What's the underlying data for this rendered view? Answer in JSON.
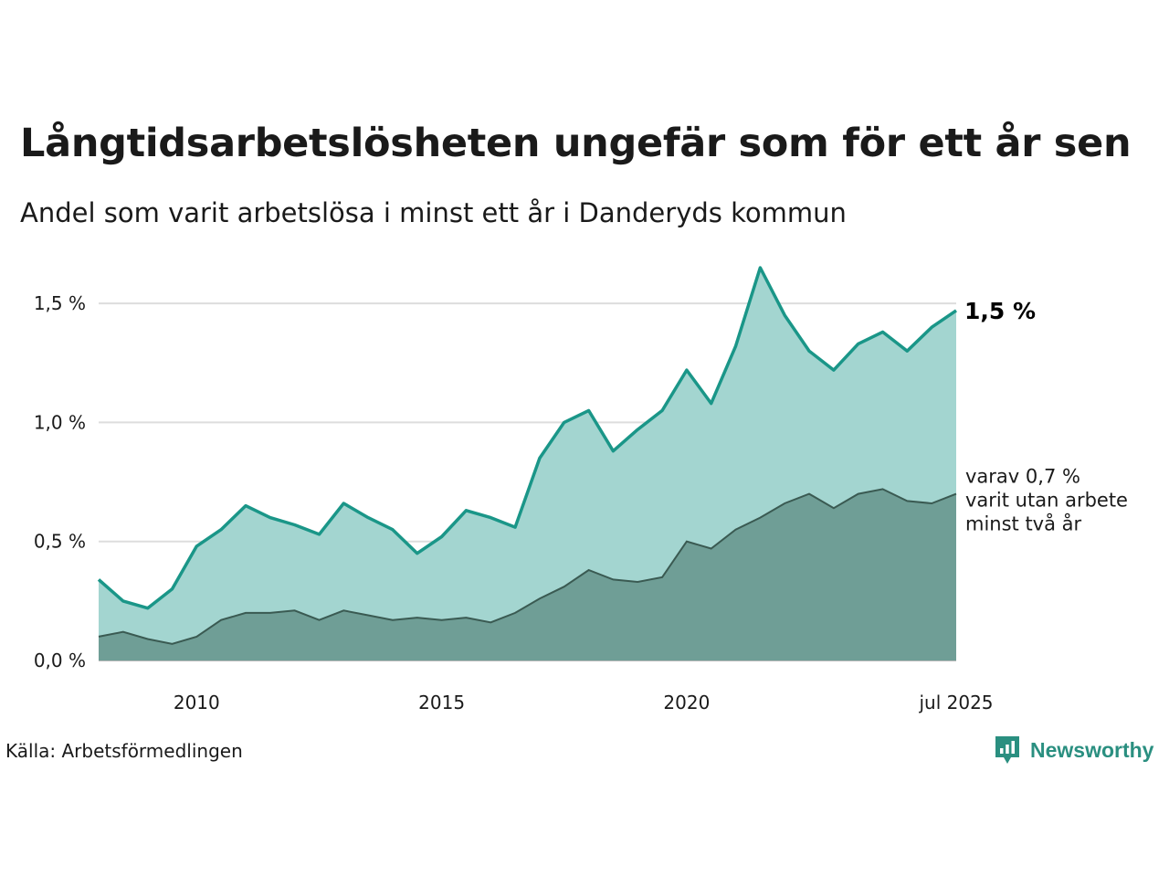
{
  "title": "Långtidsarbetslösheten ungefär som för ett år sen",
  "subtitle": "Andel som varit arbetslösa i minst ett år i Danderyds kommun",
  "source": "Källa: Arbetsförmedlingen",
  "brand": "Newsworthy",
  "colors": {
    "long_term_line": "#1a9688",
    "long_term_fill": "#a3d5d0",
    "two_year_line": "#3a5a52",
    "two_year_fill": "#6f9e96",
    "brand": "#2a8f80"
  },
  "chart_data": {
    "type": "area",
    "y_ticks": [
      "0,0 %",
      "0,5 %",
      "1,0 %",
      "1,5 %"
    ],
    "y_tick_values": [
      0,
      0.5,
      1.0,
      1.5
    ],
    "ylim": [
      0,
      1.7
    ],
    "x_ticks": [
      "2010",
      "2015",
      "2020",
      "jul 2025"
    ],
    "x_tick_values": [
      "2010-01",
      "2015-01",
      "2020-01",
      "2025-07"
    ],
    "xlim": [
      "2008-01",
      "2025-07"
    ],
    "grid": true,
    "end_label": "1,5 %",
    "annotation_lines": [
      "varav 0,7 %",
      "varit utan arbete",
      "minst två år"
    ],
    "series": [
      {
        "x": [
          "2008-01",
          "2008-07",
          "2009-01",
          "2009-07",
          "2010-01",
          "2010-07",
          "2011-01",
          "2011-07",
          "2012-01",
          "2012-07",
          "2013-01",
          "2013-07",
          "2014-01",
          "2014-07",
          "2015-01",
          "2015-07",
          "2016-01",
          "2016-07",
          "2017-01",
          "2017-07",
          "2018-01",
          "2018-07",
          "2019-01",
          "2019-07",
          "2020-01",
          "2020-07",
          "2021-01",
          "2021-07",
          "2022-01",
          "2022-07",
          "2023-01",
          "2023-07",
          "2024-01",
          "2024-07",
          "2025-01",
          "2025-07"
        ],
        "values": [
          0.34,
          0.25,
          0.22,
          0.3,
          0.48,
          0.55,
          0.65,
          0.6,
          0.57,
          0.53,
          0.66,
          0.6,
          0.55,
          0.45,
          0.52,
          0.63,
          0.6,
          0.56,
          0.85,
          1.0,
          1.05,
          0.88,
          0.97,
          1.05,
          1.22,
          1.08,
          1.32,
          1.65,
          1.45,
          1.3,
          1.22,
          1.33,
          1.38,
          1.3,
          1.4,
          1.47
        ]
      },
      {
        "x": [
          "2008-01",
          "2008-07",
          "2009-01",
          "2009-07",
          "2010-01",
          "2010-07",
          "2011-01",
          "2011-07",
          "2012-01",
          "2012-07",
          "2013-01",
          "2013-07",
          "2014-01",
          "2014-07",
          "2015-01",
          "2015-07",
          "2016-01",
          "2016-07",
          "2017-01",
          "2017-07",
          "2018-01",
          "2018-07",
          "2019-01",
          "2019-07",
          "2020-01",
          "2020-07",
          "2021-01",
          "2021-07",
          "2022-01",
          "2022-07",
          "2023-01",
          "2023-07",
          "2024-01",
          "2024-07",
          "2025-01",
          "2025-07"
        ],
        "values": [
          0.1,
          0.12,
          0.09,
          0.07,
          0.1,
          0.17,
          0.2,
          0.2,
          0.21,
          0.17,
          0.21,
          0.19,
          0.17,
          0.18,
          0.17,
          0.18,
          0.16,
          0.2,
          0.26,
          0.31,
          0.38,
          0.34,
          0.33,
          0.35,
          0.5,
          0.47,
          0.55,
          0.6,
          0.66,
          0.7,
          0.64,
          0.7,
          0.72,
          0.67,
          0.66,
          0.7
        ]
      }
    ]
  }
}
